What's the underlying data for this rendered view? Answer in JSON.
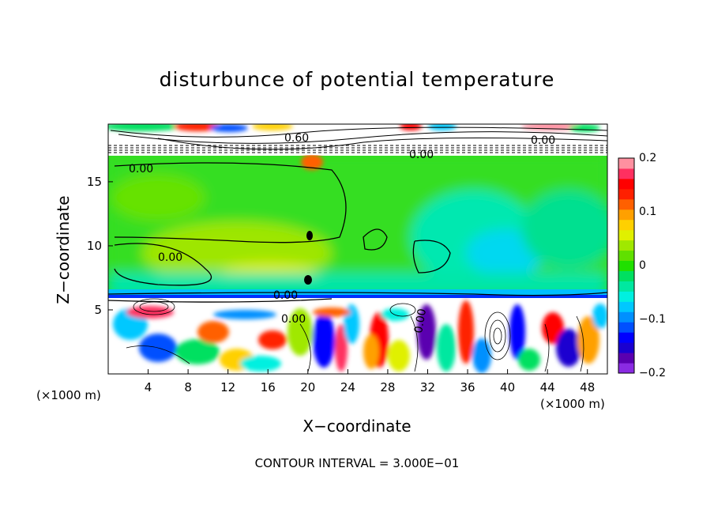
{
  "chart_data": {
    "type": "heatmap",
    "title": "disturbunce of potential temperature",
    "xlabel": "X−coordinate",
    "ylabel": "Z−coordinate",
    "x_unit_left": "(×1000 m)",
    "x_unit_right": "(×1000 m)",
    "footnote": "CONTOUR INTERVAL = 3.000E−01",
    "xlim": [
      0,
      50
    ],
    "ylim": [
      0,
      19.5
    ],
    "x_ticks": [
      "4",
      "8",
      "12",
      "16",
      "20",
      "24",
      "28",
      "32",
      "36",
      "40",
      "44",
      "48"
    ],
    "y_ticks": [
      "5",
      "10",
      "15"
    ],
    "colorbar": {
      "min": -0.2,
      "max": 0.2,
      "tick_labels": [
        "0.2",
        "0.1",
        "0",
        "−0.1",
        "−0.2"
      ],
      "colors": [
        "#8a2be2",
        "#5a00b0",
        "#1a00d0",
        "#0000ff",
        "#0050ff",
        "#0090ff",
        "#00c8ff",
        "#00f0e0",
        "#00e8a0",
        "#00e060",
        "#20e000",
        "#60e000",
        "#a0e800",
        "#e0f000",
        "#ffd000",
        "#ffa000",
        "#ff6000",
        "#ff2000",
        "#ff0000",
        "#ff3060",
        "#ff90a0"
      ]
    },
    "contour_labels": [
      "0.00",
      "0.00",
      "0.00",
      "0.00",
      "0.00",
      "0.60",
      "0.00",
      "0.00"
    ]
  }
}
